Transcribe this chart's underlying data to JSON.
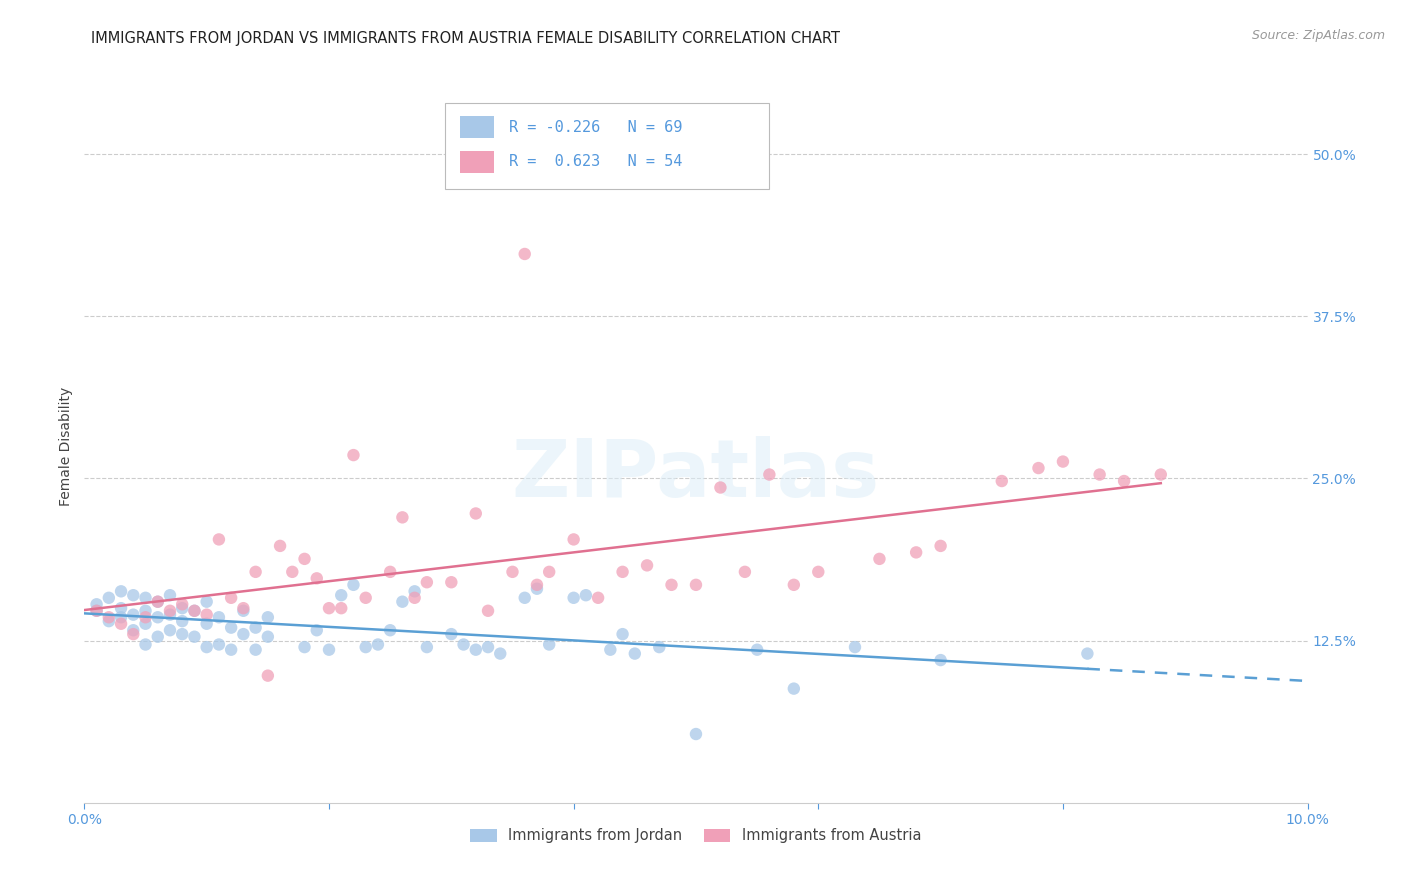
{
  "title": "IMMIGRANTS FROM JORDAN VS IMMIGRANTS FROM AUSTRIA FEMALE DISABILITY CORRELATION CHART",
  "source": "Source: ZipAtlas.com",
  "ylabel": "Female Disability",
  "xlim": [
    0.0,
    0.1
  ],
  "ylim": [
    0.0,
    0.55
  ],
  "yticks": [
    0.125,
    0.25,
    0.375,
    0.5
  ],
  "ytick_labels": [
    "12.5%",
    "25.0%",
    "37.5%",
    "50.0%"
  ],
  "xticks": [
    0.0,
    0.02,
    0.04,
    0.06,
    0.08,
    0.1
  ],
  "xtick_labels": [
    "0.0%",
    "",
    "",
    "",
    "",
    "10.0%"
  ],
  "jordan_color": "#a8c8e8",
  "austria_color": "#f0a0b8",
  "jordan_R": -0.226,
  "jordan_N": 69,
  "austria_R": 0.623,
  "austria_N": 54,
  "legend_label_jordan": "Immigrants from Jordan",
  "legend_label_austria": "Immigrants from Austria",
  "watermark": "ZIPatlas",
  "jordan_line_color": "#5a9fd4",
  "austria_line_color": "#e07090",
  "jordan_x": [
    0.001,
    0.001,
    0.002,
    0.002,
    0.003,
    0.003,
    0.003,
    0.004,
    0.004,
    0.004,
    0.005,
    0.005,
    0.005,
    0.005,
    0.006,
    0.006,
    0.006,
    0.007,
    0.007,
    0.007,
    0.008,
    0.008,
    0.008,
    0.009,
    0.009,
    0.01,
    0.01,
    0.01,
    0.011,
    0.011,
    0.012,
    0.012,
    0.013,
    0.013,
    0.014,
    0.014,
    0.015,
    0.015,
    0.018,
    0.019,
    0.02,
    0.021,
    0.022,
    0.023,
    0.024,
    0.025,
    0.026,
    0.027,
    0.028,
    0.03,
    0.031,
    0.032,
    0.033,
    0.034,
    0.036,
    0.037,
    0.038,
    0.04,
    0.041,
    0.043,
    0.044,
    0.045,
    0.047,
    0.05,
    0.055,
    0.058,
    0.063,
    0.07,
    0.082
  ],
  "jordan_y": [
    0.148,
    0.153,
    0.14,
    0.158,
    0.143,
    0.15,
    0.163,
    0.133,
    0.145,
    0.16,
    0.122,
    0.138,
    0.148,
    0.158,
    0.128,
    0.143,
    0.155,
    0.133,
    0.145,
    0.16,
    0.13,
    0.14,
    0.15,
    0.128,
    0.148,
    0.12,
    0.138,
    0.155,
    0.122,
    0.143,
    0.118,
    0.135,
    0.13,
    0.148,
    0.118,
    0.135,
    0.128,
    0.143,
    0.12,
    0.133,
    0.118,
    0.16,
    0.168,
    0.12,
    0.122,
    0.133,
    0.155,
    0.163,
    0.12,
    0.13,
    0.122,
    0.118,
    0.12,
    0.115,
    0.158,
    0.165,
    0.122,
    0.158,
    0.16,
    0.118,
    0.13,
    0.115,
    0.12,
    0.053,
    0.118,
    0.088,
    0.12,
    0.11,
    0.115
  ],
  "austria_x": [
    0.001,
    0.002,
    0.003,
    0.004,
    0.005,
    0.006,
    0.007,
    0.008,
    0.009,
    0.01,
    0.011,
    0.012,
    0.013,
    0.014,
    0.015,
    0.016,
    0.017,
    0.018,
    0.019,
    0.02,
    0.021,
    0.022,
    0.023,
    0.025,
    0.026,
    0.027,
    0.028,
    0.03,
    0.032,
    0.033,
    0.035,
    0.036,
    0.037,
    0.038,
    0.04,
    0.042,
    0.044,
    0.046,
    0.048,
    0.05,
    0.052,
    0.054,
    0.056,
    0.058,
    0.06,
    0.065,
    0.068,
    0.07,
    0.075,
    0.078,
    0.08,
    0.083,
    0.085,
    0.088
  ],
  "austria_y": [
    0.148,
    0.143,
    0.138,
    0.13,
    0.143,
    0.155,
    0.148,
    0.153,
    0.148,
    0.145,
    0.203,
    0.158,
    0.15,
    0.178,
    0.098,
    0.198,
    0.178,
    0.188,
    0.173,
    0.15,
    0.15,
    0.268,
    0.158,
    0.178,
    0.22,
    0.158,
    0.17,
    0.17,
    0.223,
    0.148,
    0.178,
    0.423,
    0.168,
    0.178,
    0.203,
    0.158,
    0.178,
    0.183,
    0.168,
    0.168,
    0.243,
    0.178,
    0.253,
    0.168,
    0.178,
    0.188,
    0.193,
    0.198,
    0.248,
    0.258,
    0.263,
    0.253,
    0.248,
    0.253
  ],
  "background_color": "#ffffff",
  "grid_color": "#cccccc",
  "title_color": "#222222",
  "title_fontsize": 10.5,
  "source_fontsize": 9,
  "tick_color": "#5599dd",
  "axis_label_color": "#444444"
}
